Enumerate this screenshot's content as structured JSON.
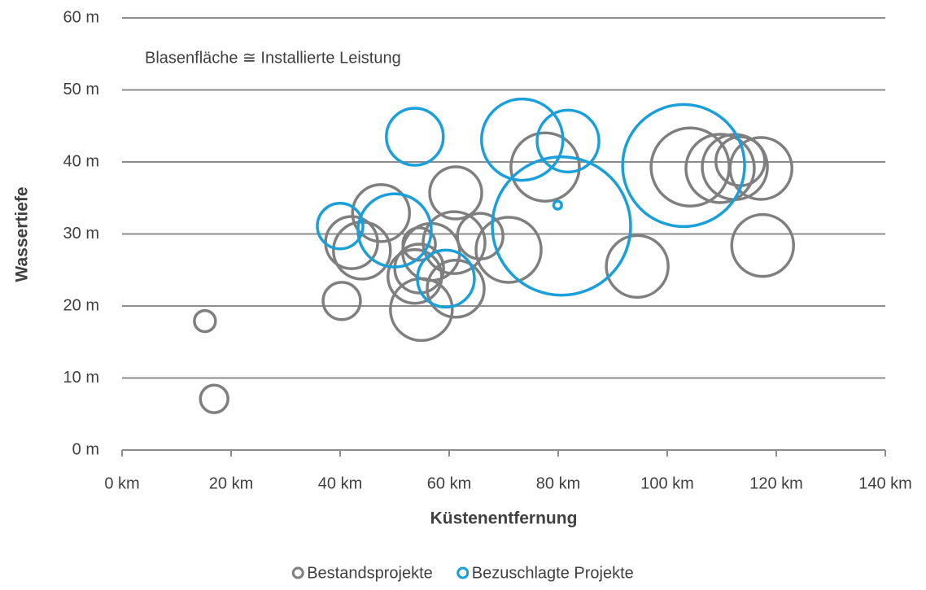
{
  "chart_data": {
    "type": "bubble",
    "annotation": "Blasenfläche ≅ Installierte Leistung",
    "x_label": "Küstenentfernung",
    "y_label": "Wassertiefe",
    "xlim": [
      0,
      140
    ],
    "ylim": [
      0,
      60
    ],
    "xticks": [
      {
        "value": 0,
        "label": "0 km"
      },
      {
        "value": 20,
        "label": "20 km"
      },
      {
        "value": 40,
        "label": "40 km"
      },
      {
        "value": 60,
        "label": "60 km"
      },
      {
        "value": 80,
        "label": "80 km"
      },
      {
        "value": 100,
        "label": "100 km"
      },
      {
        "value": 120,
        "label": "120 km"
      },
      {
        "value": 140,
        "label": "140 km"
      }
    ],
    "yticks": [
      {
        "value": 0,
        "label": "0 m"
      },
      {
        "value": 10,
        "label": "10 m"
      },
      {
        "value": 20,
        "label": "20 m"
      },
      {
        "value": 30,
        "label": "30 m"
      },
      {
        "value": 40,
        "label": "40 m"
      },
      {
        "value": 50,
        "label": "50 m"
      },
      {
        "value": 60,
        "label": "60 m"
      }
    ],
    "grid": true,
    "legend": "bottom",
    "series": [
      {
        "name": "Bestandsprojekte",
        "color": "#7f7f7f",
        "x": [
          15.2,
          16.9,
          40.3,
          42.1,
          44,
          47.5,
          53.7,
          54.5,
          54.9,
          54.5,
          56.7,
          61.2,
          60.9,
          61.2,
          65.7,
          70.9,
          77.6,
          94.5,
          104.2,
          109.7,
          112.4,
          113.4,
          117.2,
          117.5
        ],
        "values": [
          17.9,
          7.1,
          20.7,
          28.8,
          27.7,
          32.9,
          24.1,
          25.2,
          19.5,
          28.6,
          27.5,
          35.7,
          28.8,
          22.4,
          29.7,
          27.8,
          39.3,
          25.5,
          39.3,
          39.1,
          39.3,
          40.1,
          39.1,
          28.4
        ],
        "sizes": [
          42,
          72,
          132,
          256,
          306,
          306,
          272,
          225,
          361,
          100,
          306,
          256,
          361,
          306,
          196,
          400,
          441,
          361,
          576,
          441,
          400,
          225,
          361,
          361
        ]
      },
      {
        "name": "Bezuschlagte Projekte",
        "color": "#1a9fd9",
        "x": [
          53.7,
          40,
          50,
          59.4,
          73.4,
          81.8,
          79.9,
          80.6,
          103
        ],
        "values": [
          43.5,
          31.1,
          30.5,
          23.8,
          43.1,
          42.9,
          34,
          31.1,
          39.5
        ],
        "sizes": [
          306,
          196,
          506,
          306,
          625,
          361,
          6,
          1806,
          1406
        ]
      }
    ]
  }
}
